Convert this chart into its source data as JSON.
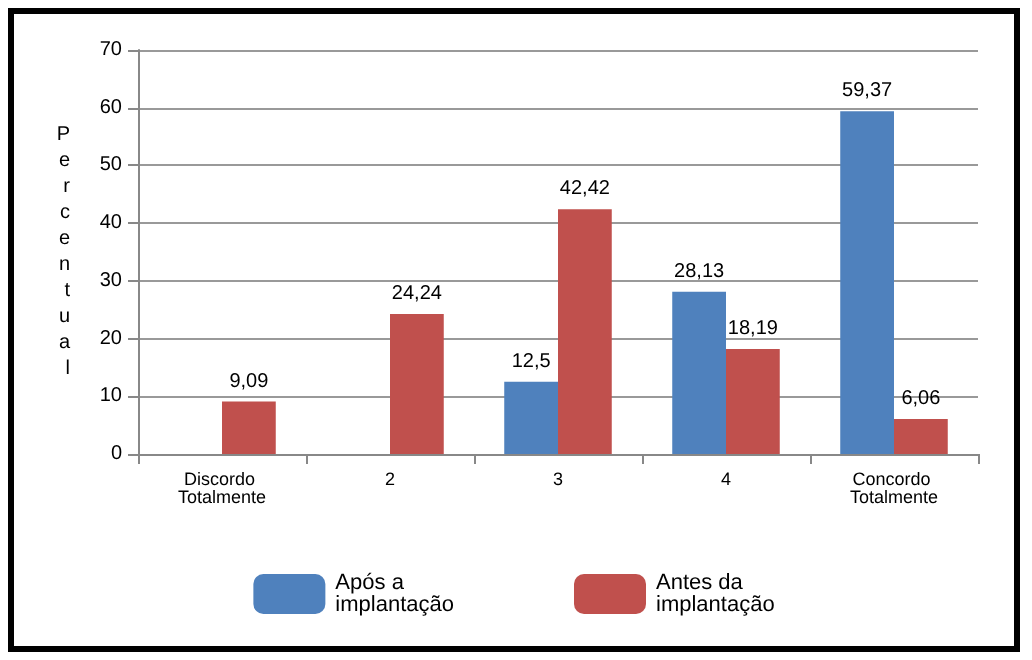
{
  "chart_data": {
    "type": "bar",
    "ylabel": "Percentual",
    "categories": [
      "Discordo Totalmente",
      "2",
      "3",
      "4",
      "Concordo Totalmente"
    ],
    "series": [
      {
        "name": "Após a implantação",
        "color": "#4f81bd",
        "values": [
          null,
          null,
          12.5,
          28.13,
          59.37
        ],
        "value_labels": [
          null,
          null,
          "12,5",
          "28,13",
          "59,37"
        ]
      },
      {
        "name": "Antes da implantação",
        "color": "#c0504d",
        "values": [
          9.09,
          24.24,
          42.42,
          18.19,
          6.06
        ],
        "value_labels": [
          "9,09",
          "24,24",
          "42,42",
          "18,19",
          "6,06"
        ]
      }
    ],
    "ylim": [
      0,
      70
    ],
    "yticks": [
      0,
      10,
      20,
      30,
      40,
      50,
      60,
      70
    ],
    "grid": "y",
    "legend": "bottom"
  }
}
